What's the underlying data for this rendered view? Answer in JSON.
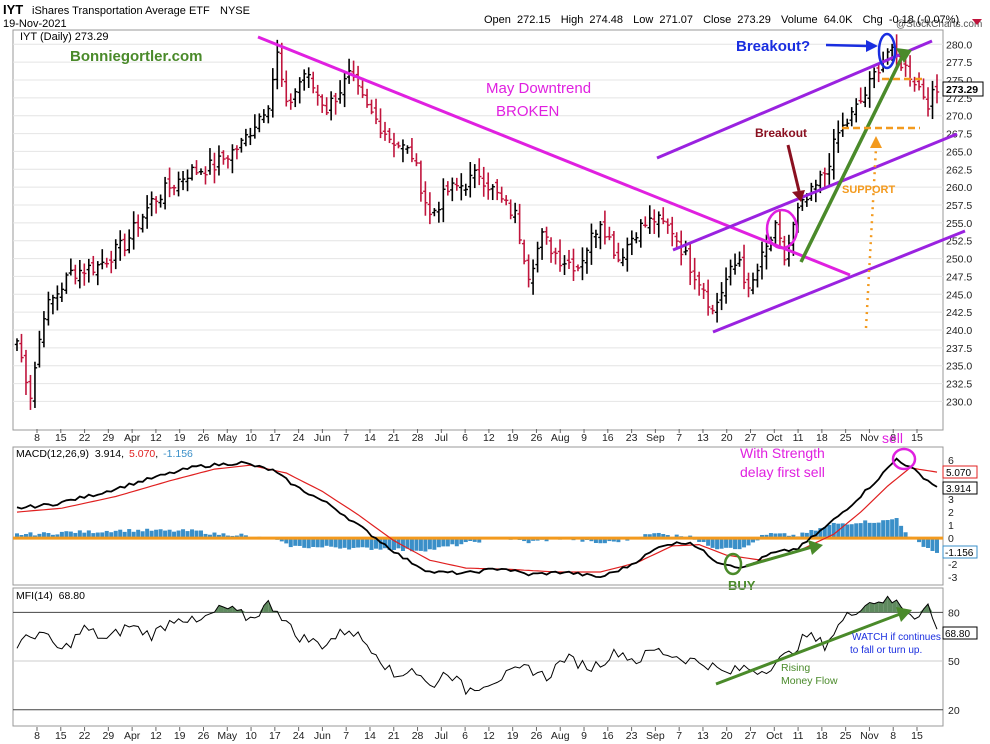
{
  "header": {
    "symbol": "IYT",
    "name": "iShares Transportation Average ETF",
    "exchange": "NYSE",
    "date": "19-Nov-2021",
    "watermark": "@StockCharts.com",
    "open_label": "Open",
    "open": "272.15",
    "high_label": "High",
    "high": "274.48",
    "low_label": "Low",
    "low": "271.07",
    "close_label": "Close",
    "close": "273.29",
    "volume_label": "Volume",
    "volume": "64.0K",
    "chg_label": "Chg",
    "chg": "-0.18 (-0.07%)"
  },
  "colors": {
    "up": "#000000",
    "down": "#c0143c",
    "magenta": "#e020e0",
    "purple": "#9a22e0",
    "green": "#4a8a2a",
    "orange": "#f39a1e",
    "blue": "#1a2ee0",
    "maroon": "#8a1020",
    "hist": "#3a8fc8",
    "signal": "#e02020"
  },
  "chart_data": [
    {
      "type": "candlestick",
      "title": "IYT (Daily) 273.29",
      "ylim": [
        226,
        282
      ],
      "y_ticks": [
        "280.0",
        "277.5",
        "275.0",
        "272.5",
        "270.0",
        "267.5",
        "265.0",
        "262.5",
        "260.0",
        "257.5",
        "255.0",
        "252.5",
        "250.0",
        "247.5",
        "245.0",
        "242.5",
        "240.0",
        "237.5",
        "235.0",
        "232.5",
        "230.0"
      ],
      "x_labels": [
        "8",
        "15",
        "22",
        "29",
        "Apr",
        "12",
        "19",
        "26",
        "May",
        "10",
        "17",
        "24",
        "Jun",
        "7",
        "14",
        "21",
        "28",
        "Jul",
        "6",
        "12",
        "19",
        "26",
        "Aug",
        "9",
        "16",
        "23",
        "Sep",
        "7",
        "13",
        "20",
        "27",
        "Oct",
        "11",
        "18",
        "25",
        "Nov",
        "8",
        "15"
      ],
      "last_price_label": "273.29",
      "anchors": [
        {
          "i": 0,
          "c": 238.5
        },
        {
          "i": 3,
          "c": 231.0
        },
        {
          "i": 6,
          "c": 242.5
        },
        {
          "i": 12,
          "c": 248.0
        },
        {
          "i": 18,
          "c": 249.0
        },
        {
          "i": 24,
          "c": 252.0
        },
        {
          "i": 30,
          "c": 258.0
        },
        {
          "i": 38,
          "c": 262.0
        },
        {
          "i": 44,
          "c": 263.0
        },
        {
          "i": 50,
          "c": 266.0
        },
        {
          "i": 56,
          "c": 272.0
        },
        {
          "i": 58,
          "c": 278.5
        },
        {
          "i": 60,
          "c": 271.0
        },
        {
          "i": 64,
          "c": 276.0
        },
        {
          "i": 69,
          "c": 271.0
        },
        {
          "i": 74,
          "c": 275.5
        },
        {
          "i": 78,
          "c": 271.0
        },
        {
          "i": 83,
          "c": 267.0
        },
        {
          "i": 88,
          "c": 264.5
        },
        {
          "i": 92,
          "c": 256.0
        },
        {
          "i": 96,
          "c": 259.5
        },
        {
          "i": 100,
          "c": 260.5
        },
        {
          "i": 103,
          "c": 262.0
        },
        {
          "i": 108,
          "c": 258.0
        },
        {
          "i": 111,
          "c": 256.0
        },
        {
          "i": 114,
          "c": 248.0
        },
        {
          "i": 117,
          "c": 253.0
        },
        {
          "i": 121,
          "c": 250.0
        },
        {
          "i": 125,
          "c": 249.0
        },
        {
          "i": 130,
          "c": 255.5
        },
        {
          "i": 134,
          "c": 250.0
        },
        {
          "i": 138,
          "c": 254.0
        },
        {
          "i": 142,
          "c": 255.5
        },
        {
          "i": 146,
          "c": 254.0
        },
        {
          "i": 150,
          "c": 249.0
        },
        {
          "i": 153,
          "c": 246.0
        },
        {
          "i": 155,
          "c": 242.5
        },
        {
          "i": 158,
          "c": 247.0
        },
        {
          "i": 161,
          "c": 250.0
        },
        {
          "i": 163,
          "c": 245.0
        },
        {
          "i": 166,
          "c": 250.0
        },
        {
          "i": 169,
          "c": 254.0
        },
        {
          "i": 171,
          "c": 250.0
        },
        {
          "i": 174,
          "c": 256.5
        },
        {
          "i": 177,
          "c": 259.0
        },
        {
          "i": 180,
          "c": 262.0
        },
        {
          "i": 183,
          "c": 267.5
        },
        {
          "i": 186,
          "c": 270.0
        },
        {
          "i": 189,
          "c": 273.0
        },
        {
          "i": 192,
          "c": 277.0
        },
        {
          "i": 194,
          "c": 279.0
        },
        {
          "i": 197,
          "c": 277.5
        },
        {
          "i": 200,
          "c": 275.0
        },
        {
          "i": 203,
          "c": 272.0
        },
        {
          "i": 205,
          "c": 273.29
        }
      ]
    },
    {
      "type": "line",
      "title": "MACD(12,26,9) 3.914, 5.070, -1.156",
      "macd_label": "MACD(12,26,9)",
      "macd_value": "3.914",
      "signal_value": "5.070",
      "hist_value": "-1.156",
      "ylim": [
        -3.6,
        7
      ],
      "y_ticks": [
        "6",
        "5",
        "4",
        "3",
        "2",
        "1",
        "0",
        "-1",
        "-2",
        "-3"
      ],
      "macd_anchors": [
        {
          "i": 0,
          "v": 2.3
        },
        {
          "i": 8,
          "v": 2.6
        },
        {
          "i": 18,
          "v": 3.4
        },
        {
          "i": 30,
          "v": 4.6
        },
        {
          "i": 40,
          "v": 5.5
        },
        {
          "i": 50,
          "v": 5.8
        },
        {
          "i": 57,
          "v": 5.2
        },
        {
          "i": 62,
          "v": 4.0
        },
        {
          "i": 70,
          "v": 2.5
        },
        {
          "i": 78,
          "v": 0.5
        },
        {
          "i": 86,
          "v": -1.5
        },
        {
          "i": 92,
          "v": -2.6
        },
        {
          "i": 100,
          "v": -2.7
        },
        {
          "i": 108,
          "v": -2.3
        },
        {
          "i": 114,
          "v": -2.8
        },
        {
          "i": 122,
          "v": -2.6
        },
        {
          "i": 130,
          "v": -3.0
        },
        {
          "i": 136,
          "v": -2.2
        },
        {
          "i": 144,
          "v": -0.5
        },
        {
          "i": 150,
          "v": -0.3
        },
        {
          "i": 156,
          "v": -1.8
        },
        {
          "i": 162,
          "v": -2.3
        },
        {
          "i": 168,
          "v": -1.2
        },
        {
          "i": 174,
          "v": -0.8
        },
        {
          "i": 180,
          "v": 0.8
        },
        {
          "i": 186,
          "v": 2.6
        },
        {
          "i": 192,
          "v": 4.6
        },
        {
          "i": 196,
          "v": 6.1
        },
        {
          "i": 200,
          "v": 5.2
        },
        {
          "i": 205,
          "v": 3.914
        }
      ],
      "signal_anchors": [
        {
          "i": 0,
          "v": 2.0
        },
        {
          "i": 10,
          "v": 2.3
        },
        {
          "i": 22,
          "v": 3.2
        },
        {
          "i": 34,
          "v": 4.4
        },
        {
          "i": 44,
          "v": 5.3
        },
        {
          "i": 52,
          "v": 5.6
        },
        {
          "i": 60,
          "v": 5.0
        },
        {
          "i": 68,
          "v": 3.6
        },
        {
          "i": 76,
          "v": 1.8
        },
        {
          "i": 84,
          "v": -0.2
        },
        {
          "i": 92,
          "v": -1.7
        },
        {
          "i": 100,
          "v": -2.3
        },
        {
          "i": 110,
          "v": -2.4
        },
        {
          "i": 120,
          "v": -2.6
        },
        {
          "i": 130,
          "v": -2.6
        },
        {
          "i": 138,
          "v": -1.9
        },
        {
          "i": 146,
          "v": -0.6
        },
        {
          "i": 152,
          "v": -0.5
        },
        {
          "i": 158,
          "v": -1.3
        },
        {
          "i": 166,
          "v": -1.7
        },
        {
          "i": 174,
          "v": -1.0
        },
        {
          "i": 182,
          "v": 0.3
        },
        {
          "i": 188,
          "v": 2.0
        },
        {
          "i": 194,
          "v": 4.0
        },
        {
          "i": 199,
          "v": 5.4
        },
        {
          "i": 205,
          "v": 5.07
        }
      ]
    },
    {
      "type": "line",
      "title": "MFI(14) 68.80",
      "mfi_label": "MFI(14)",
      "mfi_value": "68.80",
      "ylim": [
        10,
        95
      ],
      "y_ticks": [
        "80",
        "50",
        "20"
      ],
      "mfi_anchors": [
        {
          "i": 0,
          "v": 60
        },
        {
          "i": 5,
          "v": 68
        },
        {
          "i": 10,
          "v": 56
        },
        {
          "i": 15,
          "v": 70
        },
        {
          "i": 20,
          "v": 63
        },
        {
          "i": 25,
          "v": 72
        },
        {
          "i": 30,
          "v": 66
        },
        {
          "i": 36,
          "v": 78
        },
        {
          "i": 40,
          "v": 73
        },
        {
          "i": 46,
          "v": 83
        },
        {
          "i": 52,
          "v": 76
        },
        {
          "i": 56,
          "v": 85
        },
        {
          "i": 58,
          "v": 82
        },
        {
          "i": 62,
          "v": 66
        },
        {
          "i": 68,
          "v": 60
        },
        {
          "i": 74,
          "v": 70
        },
        {
          "i": 80,
          "v": 56
        },
        {
          "i": 84,
          "v": 40
        },
        {
          "i": 88,
          "v": 46
        },
        {
          "i": 92,
          "v": 34
        },
        {
          "i": 96,
          "v": 44
        },
        {
          "i": 100,
          "v": 32
        },
        {
          "i": 104,
          "v": 36
        },
        {
          "i": 110,
          "v": 42
        },
        {
          "i": 114,
          "v": 46
        },
        {
          "i": 118,
          "v": 40
        },
        {
          "i": 122,
          "v": 52
        },
        {
          "i": 128,
          "v": 46
        },
        {
          "i": 134,
          "v": 56
        },
        {
          "i": 138,
          "v": 50
        },
        {
          "i": 142,
          "v": 57
        },
        {
          "i": 148,
          "v": 52
        },
        {
          "i": 154,
          "v": 48
        },
        {
          "i": 158,
          "v": 42
        },
        {
          "i": 162,
          "v": 46
        },
        {
          "i": 166,
          "v": 44
        },
        {
          "i": 172,
          "v": 54
        },
        {
          "i": 176,
          "v": 66
        },
        {
          "i": 180,
          "v": 60
        },
        {
          "i": 184,
          "v": 75
        },
        {
          "i": 188,
          "v": 84
        },
        {
          "i": 192,
          "v": 88
        },
        {
          "i": 196,
          "v": 86
        },
        {
          "i": 200,
          "v": 78
        },
        {
          "i": 203,
          "v": 84
        },
        {
          "i": 205,
          "v": 68.8
        }
      ]
    }
  ],
  "annotations": {
    "site": "Bonniegortler.com",
    "downtrend_1": "May Downtrend",
    "downtrend_2": "BROKEN",
    "breakout_q": "Breakout?",
    "breakout": "Breakout",
    "support": "SUPPORT",
    "sell": "sell",
    "strength_1": "With Strength",
    "strength_2": "delay first sell",
    "buy": "BUY",
    "rising_1": "Rising",
    "rising_2": "Money Flow",
    "watch_1": "WATCH if continues",
    "watch_2": "to fall or turn up."
  }
}
